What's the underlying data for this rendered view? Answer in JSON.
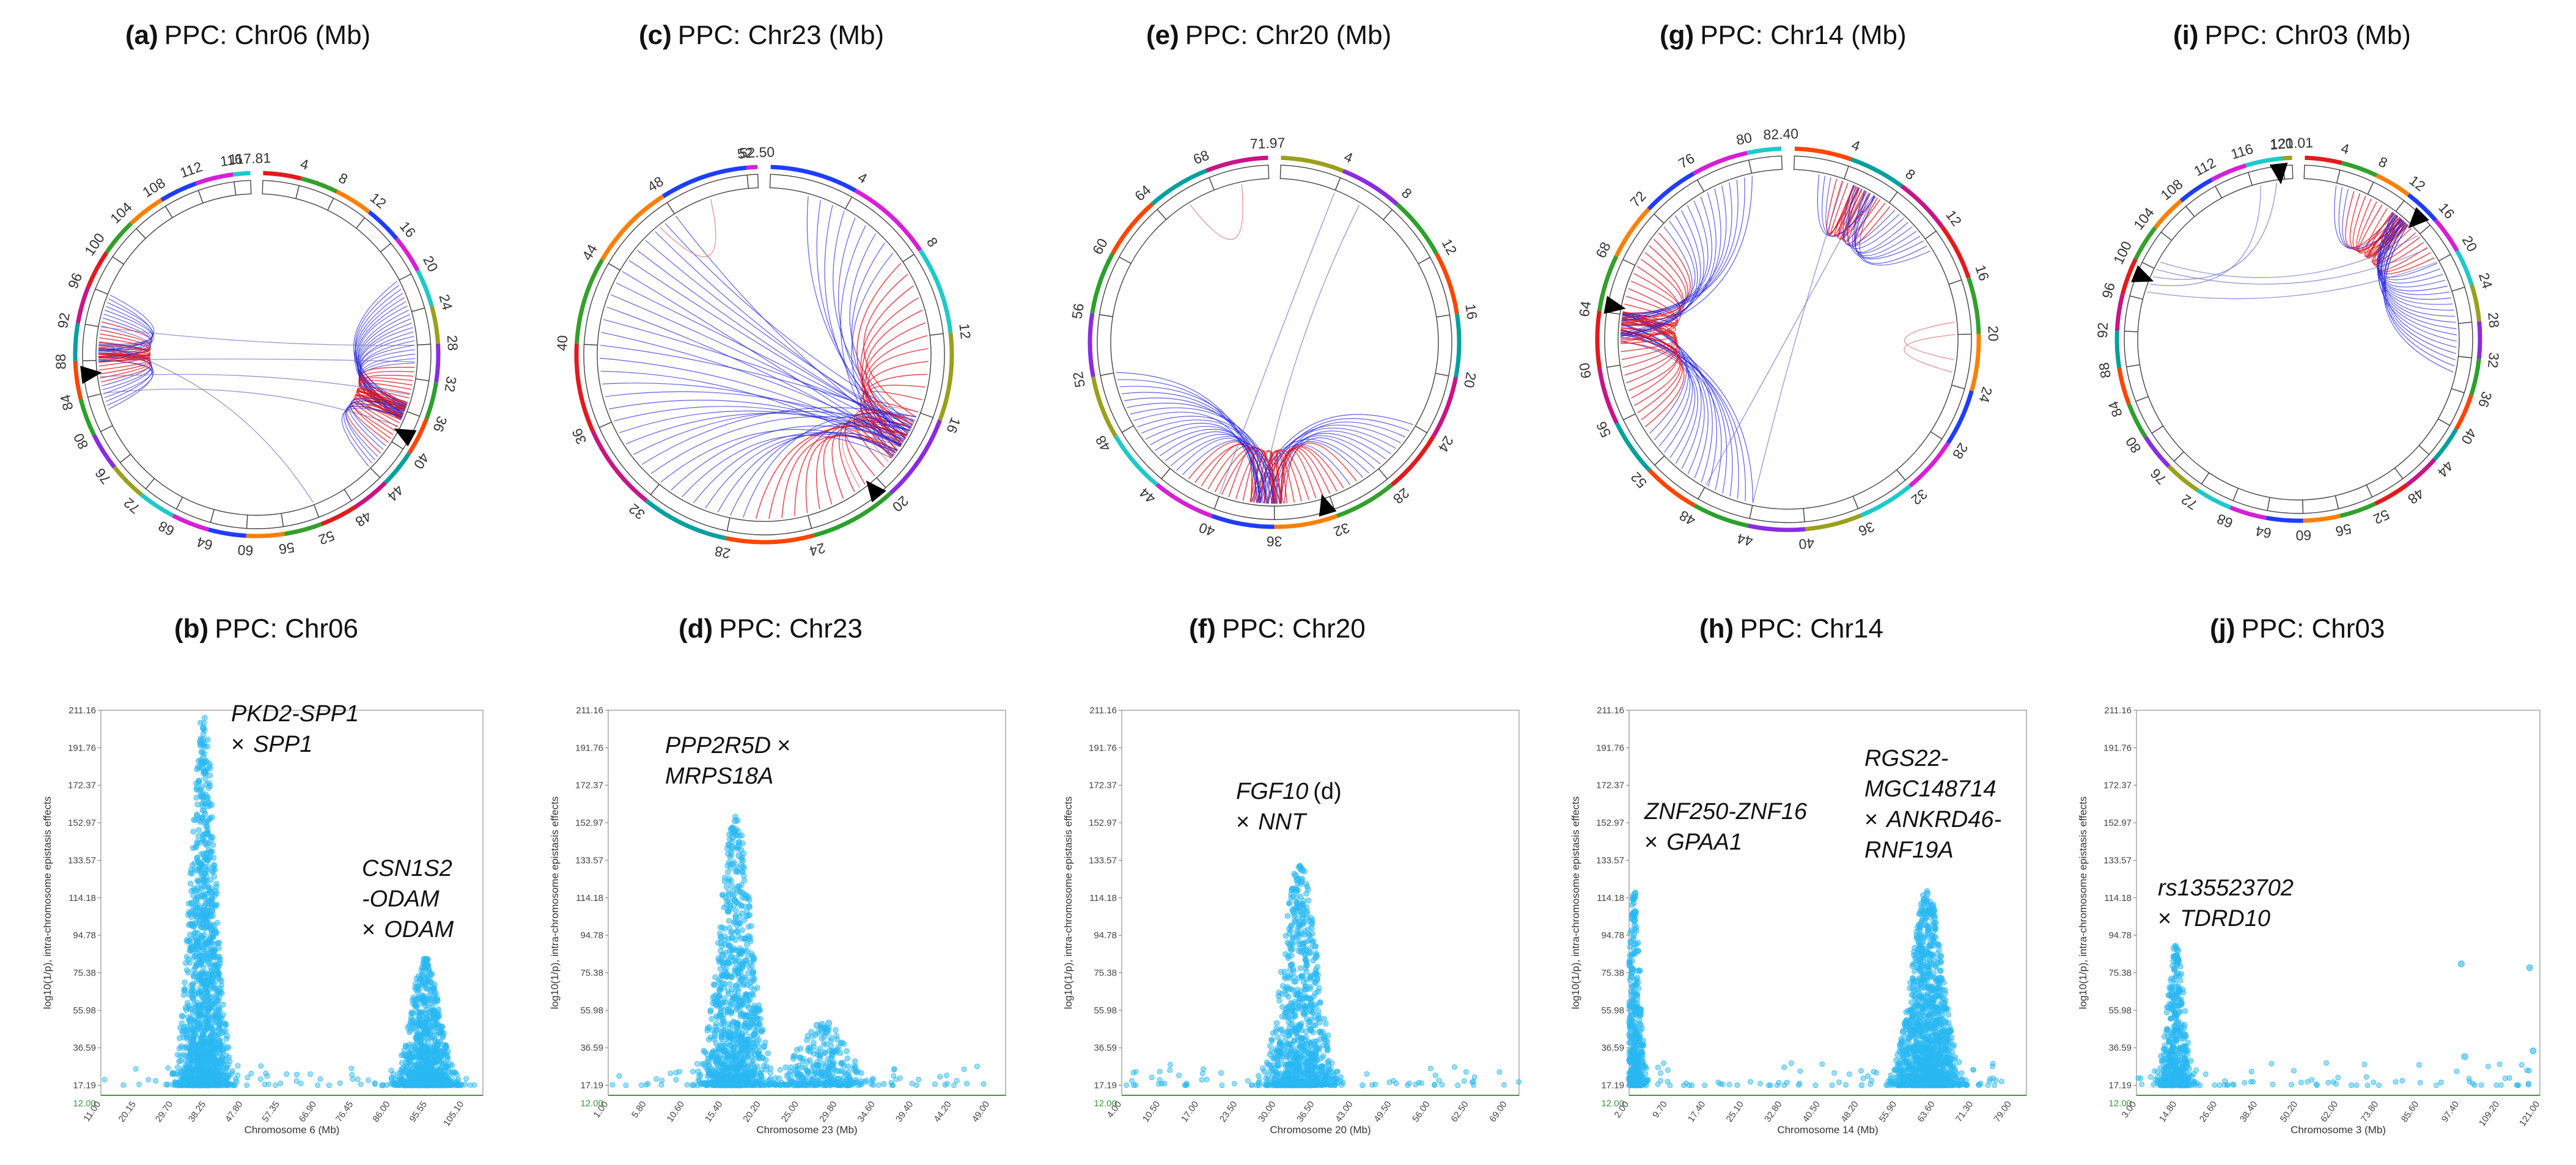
{
  "figure": {
    "circos_panels": [
      {
        "letter": "(a)",
        "title": "PPC: Chr06 (Mb)"
      },
      {
        "letter": "(c)",
        "title": "PPC: Chr23 (Mb)"
      },
      {
        "letter": "(e)",
        "title": "PPC: Chr20 (Mb)"
      },
      {
        "letter": "(g)",
        "title": "PPC: Chr14 (Mb)"
      },
      {
        "letter": "(i)",
        "title": "PPC: Chr03 (Mb)"
      }
    ],
    "scatter_panels": [
      {
        "letter": "(b)",
        "title": "PPC: Chr06"
      },
      {
        "letter": "(d)",
        "title": "PPC: Chr23"
      },
      {
        "letter": "(f)",
        "title": "PPC: Chr20"
      },
      {
        "letter": "(h)",
        "title": "PPC: Chr14"
      },
      {
        "letter": "(j)",
        "title": "PPC: Chr03"
      }
    ]
  },
  "chart_data": [
    {
      "type": "circos",
      "panel": "(a)",
      "title": "PPC: Chr06 (Mb)",
      "chromosome": "Chr06",
      "max_mb": 117.81,
      "max_label": "117.81",
      "tick_labels": [
        "4",
        "8",
        "12",
        "16",
        "20",
        "24",
        "28",
        "32",
        "36",
        "40",
        "44",
        "48",
        "52",
        "56",
        "60",
        "64",
        "68",
        "72",
        "76",
        "80",
        "84",
        "88",
        "92",
        "96",
        "100",
        "104",
        "108",
        "112",
        "116",
        "117.81"
      ],
      "markers_mb": [
        38.5,
        86.5
      ],
      "link_groups": [
        {
          "hub_mb": 36,
          "from_mb": 20,
          "to_mb": 44,
          "n": 46
        },
        {
          "hub_mb": 89,
          "from_mb": 82,
          "to_mb": 96,
          "n": 30
        }
      ],
      "cross_links": [
        [
          30,
          88
        ],
        [
          34,
          86
        ],
        [
          38,
          84
        ],
        [
          52,
          90
        ],
        [
          28,
          92
        ]
      ]
    },
    {
      "type": "circos",
      "panel": "(c)",
      "title": "PPC: Chr23 (Mb)",
      "chromosome": "Chr23",
      "max_mb": 52.5,
      "max_label": "52.50",
      "tick_labels": [
        "4",
        "8",
        "12",
        "16",
        "20",
        "24",
        "28",
        "32",
        "36",
        "40",
        "44",
        "48",
        "52",
        "52.50"
      ],
      "markers_mb": [
        20.5
      ],
      "link_groups": [
        {
          "hub_mb": 17.5,
          "from_mb": 2,
          "to_mb": 48,
          "n": 70
        }
      ],
      "cross_links": [
        [
          47,
          50
        ],
        [
          16,
          19
        ],
        [
          18,
          21
        ]
      ]
    },
    {
      "type": "circos",
      "panel": "(e)",
      "title": "PPC: Chr20 (Mb)",
      "chromosome": "Chr20",
      "max_mb": 71.97,
      "max_label": "71.97",
      "tick_labels": [
        "4",
        "8",
        "12",
        "16",
        "20",
        "24",
        "28",
        "32",
        "36",
        "40",
        "44",
        "48",
        "52",
        "56",
        "60",
        "64",
        "68",
        "71.97"
      ],
      "markers_mb": [
        32.5
      ],
      "link_groups": [
        {
          "hub_mb": 36.5,
          "from_mb": 24,
          "to_mb": 52,
          "n": 54
        }
      ],
      "cross_links": [
        [
          4,
          40
        ],
        [
          66,
          70
        ],
        [
          6,
          37
        ]
      ]
    },
    {
      "type": "circos",
      "panel": "(g)",
      "title": "PPC: Chr14 (Mb)",
      "chromosome": "Chr14",
      "max_mb": 82.4,
      "max_label": "82.40",
      "tick_labels": [
        "4",
        "8",
        "12",
        "16",
        "20",
        "24",
        "28",
        "32",
        "36",
        "40",
        "44",
        "48",
        "52",
        "56",
        "60",
        "64",
        "68",
        "72",
        "76",
        "80",
        "82.40"
      ],
      "markers_mb": [
        64.5
      ],
      "link_groups": [
        {
          "hub_mb": 63,
          "from_mb": 44,
          "to_mb": 80,
          "n": 58
        },
        {
          "hub_mb": 6,
          "from_mb": 2,
          "to_mb": 13,
          "n": 24
        }
      ],
      "cross_links": [
        [
          20,
          23
        ],
        [
          19,
          22
        ],
        [
          4,
          44
        ],
        [
          6,
          48
        ]
      ]
    },
    {
      "type": "circos",
      "panel": "(i)",
      "title": "PPC: Chr03 (Mb)",
      "chromosome": "Chr03",
      "max_mb": 121.01,
      "max_label": "121.01",
      "tick_labels": [
        "4",
        "8",
        "12",
        "16",
        "20",
        "24",
        "28",
        "32",
        "36",
        "40",
        "44",
        "48",
        "52",
        "56",
        "60",
        "64",
        "68",
        "72",
        "76",
        "80",
        "84",
        "88",
        "92",
        "96",
        "100",
        "104",
        "108",
        "112",
        "116",
        "120",
        "121.01"
      ],
      "markers_mb": [
        14.5,
        98.5,
        119.5
      ],
      "link_groups": [
        {
          "hub_mb": 13,
          "from_mb": 4,
          "to_mb": 34,
          "n": 40
        }
      ],
      "cross_links": [
        [
          99,
          119
        ],
        [
          98,
          117
        ],
        [
          100,
          18
        ],
        [
          97,
          20
        ],
        [
          101,
          16
        ]
      ]
    },
    {
      "type": "scatter",
      "panel": "(b)",
      "title": "PPC: Chr06",
      "ylabel": "log10(1/p), intra-chromosome epistasis effects",
      "xlabel": "Chromosome 6 (Mb)",
      "y_ticks": [
        "211.16",
        "191.76",
        "172.37",
        "152.97",
        "133.57",
        "114.18",
        "94.78",
        "75.38",
        "55.98",
        "36.59",
        "17.19"
      ],
      "y_baseline": "12.00",
      "x_ticks": [
        "11.00",
        "20.15",
        "29.70",
        "38.25",
        "47.80",
        "57.35",
        "66.90",
        "76.45",
        "86.00",
        "95.55",
        "105.10"
      ],
      "x_range_mb": [
        11.0,
        110.0
      ],
      "y_range": [
        12.0,
        211.16
      ],
      "peaks": [
        {
          "center_mb": 37.5,
          "width_mb": 5.0,
          "height": 211.16,
          "n": 1400
        },
        {
          "center_mb": 95.0,
          "width_mb": 6.0,
          "height": 83.0,
          "n": 900
        }
      ],
      "annotations": [
        {
          "gene_a": "PKD2-SPP1",
          "gene_b": "SPP1"
        },
        {
          "gene_a": "CSN1S2",
          "gene_a2": "-ODAM",
          "gene_b": "ODAM"
        }
      ]
    },
    {
      "type": "scatter",
      "panel": "(d)",
      "title": "PPC: Chr23",
      "ylabel": "log10(1/p), intra-chromosome epistasis effects",
      "xlabel": "Chromosome 23 (Mb)",
      "y_ticks": [
        "211.16",
        "191.76",
        "172.37",
        "152.97",
        "133.57",
        "114.18",
        "94.78",
        "75.38",
        "55.98",
        "36.59",
        "17.19"
      ],
      "y_baseline": "12.00",
      "x_ticks": [
        "1.00",
        "5.80",
        "10.60",
        "15.40",
        "20.20",
        "25.00",
        "29.80",
        "34.60",
        "39.40",
        "44.20",
        "49.00"
      ],
      "x_range_mb": [
        1.0,
        51.0
      ],
      "y_range": [
        12.0,
        211.16
      ],
      "peaks": [
        {
          "center_mb": 17.0,
          "width_mb": 3.2,
          "height": 158.0,
          "n": 1000
        },
        {
          "center_mb": 28.0,
          "width_mb": 5.0,
          "height": 50.0,
          "n": 300
        }
      ],
      "annotations": [
        {
          "gene_a": "PPP2R5D",
          "gene_b": "MRPS18A"
        }
      ]
    },
    {
      "type": "scatter",
      "panel": "(f)",
      "title": "PPC: Chr20",
      "ylabel": "log10(1/p), intra-chromosome epistasis effects",
      "xlabel": "Chromosome 20 (Mb)",
      "y_ticks": [
        "211.16",
        "191.76",
        "172.37",
        "152.97",
        "133.57",
        "114.18",
        "94.78",
        "75.38",
        "55.98",
        "36.59",
        "17.19"
      ],
      "y_baseline": "12.00",
      "x_ticks": [
        "4.00",
        "10.50",
        "17.00",
        "23.50",
        "30.00",
        "36.50",
        "43.00",
        "49.50",
        "56.00",
        "62.50",
        "69.00"
      ],
      "x_range_mb": [
        4.0,
        71.0
      ],
      "y_range": [
        12.0,
        211.16
      ],
      "peaks": [
        {
          "center_mb": 34.0,
          "width_mb": 4.5,
          "height": 133.0,
          "n": 850
        }
      ],
      "annotations": [
        {
          "gene_a": "FGF10",
          "suffix": "(d)",
          "gene_b": "NNT"
        }
      ]
    },
    {
      "type": "scatter",
      "panel": "(h)",
      "title": "PPC: Chr14",
      "ylabel": "log10(1/p), intra-chromosome epistasis effects",
      "xlabel": "Chromosome 14 (Mb)",
      "y_ticks": [
        "211.16",
        "191.76",
        "172.37",
        "152.97",
        "133.57",
        "114.18",
        "94.78",
        "75.38",
        "55.98",
        "36.59",
        "17.19"
      ],
      "y_baseline": "12.00",
      "x_ticks": [
        "2.00",
        "9.70",
        "17.40",
        "25.10",
        "32.80",
        "40.50",
        "48.20",
        "55.90",
        "63.60",
        "71.30",
        "79.00"
      ],
      "x_range_mb": [
        2.0,
        82.0
      ],
      "y_range": [
        12.0,
        211.16
      ],
      "peaks": [
        {
          "center_mb": 3.0,
          "width_mb": 1.8,
          "height": 121.0,
          "n": 500
        },
        {
          "center_mb": 62.0,
          "width_mb": 5.0,
          "height": 119.0,
          "n": 1400
        }
      ],
      "annotations": [
        {
          "gene_a": "ZNF250-ZNF16",
          "gene_b": "GPAA1"
        },
        {
          "gene_a": "RGS22-",
          "gene_a2": "MGC148714",
          "gene_b": "ANKRD46-",
          "gene_b2": "RNF19A"
        }
      ]
    },
    {
      "type": "scatter",
      "panel": "(j)",
      "title": "PPC: Chr03",
      "ylabel": "log10(1/p), intra-chromosome epistasis effects",
      "xlabel": "Chromosome 3 (Mb)",
      "y_ticks": [
        "211.16",
        "191.76",
        "172.37",
        "152.97",
        "133.57",
        "114.18",
        "94.78",
        "75.38",
        "55.98",
        "36.59",
        "17.19"
      ],
      "y_baseline": "12.00",
      "x_ticks": [
        "3.00",
        "14.80",
        "26.60",
        "38.40",
        "50.20",
        "62.00",
        "73.80",
        "85.60",
        "97.40",
        "109.20",
        "121.00"
      ],
      "x_range_mb": [
        3.0,
        121.0
      ],
      "y_range": [
        12.0,
        211.16
      ],
      "peaks": [
        {
          "center_mb": 14.5,
          "width_mb": 4.0,
          "height": 90.0,
          "n": 450
        }
      ],
      "scattered_points": [
        [
          98.0,
          80.0
        ],
        [
          99.0,
          32.0
        ],
        [
          118.0,
          78.0
        ],
        [
          119.0,
          35.0
        ]
      ],
      "annotations": [
        {
          "gene_a": "rs135523702",
          "gene_b": "TDRD10"
        }
      ]
    }
  ]
}
